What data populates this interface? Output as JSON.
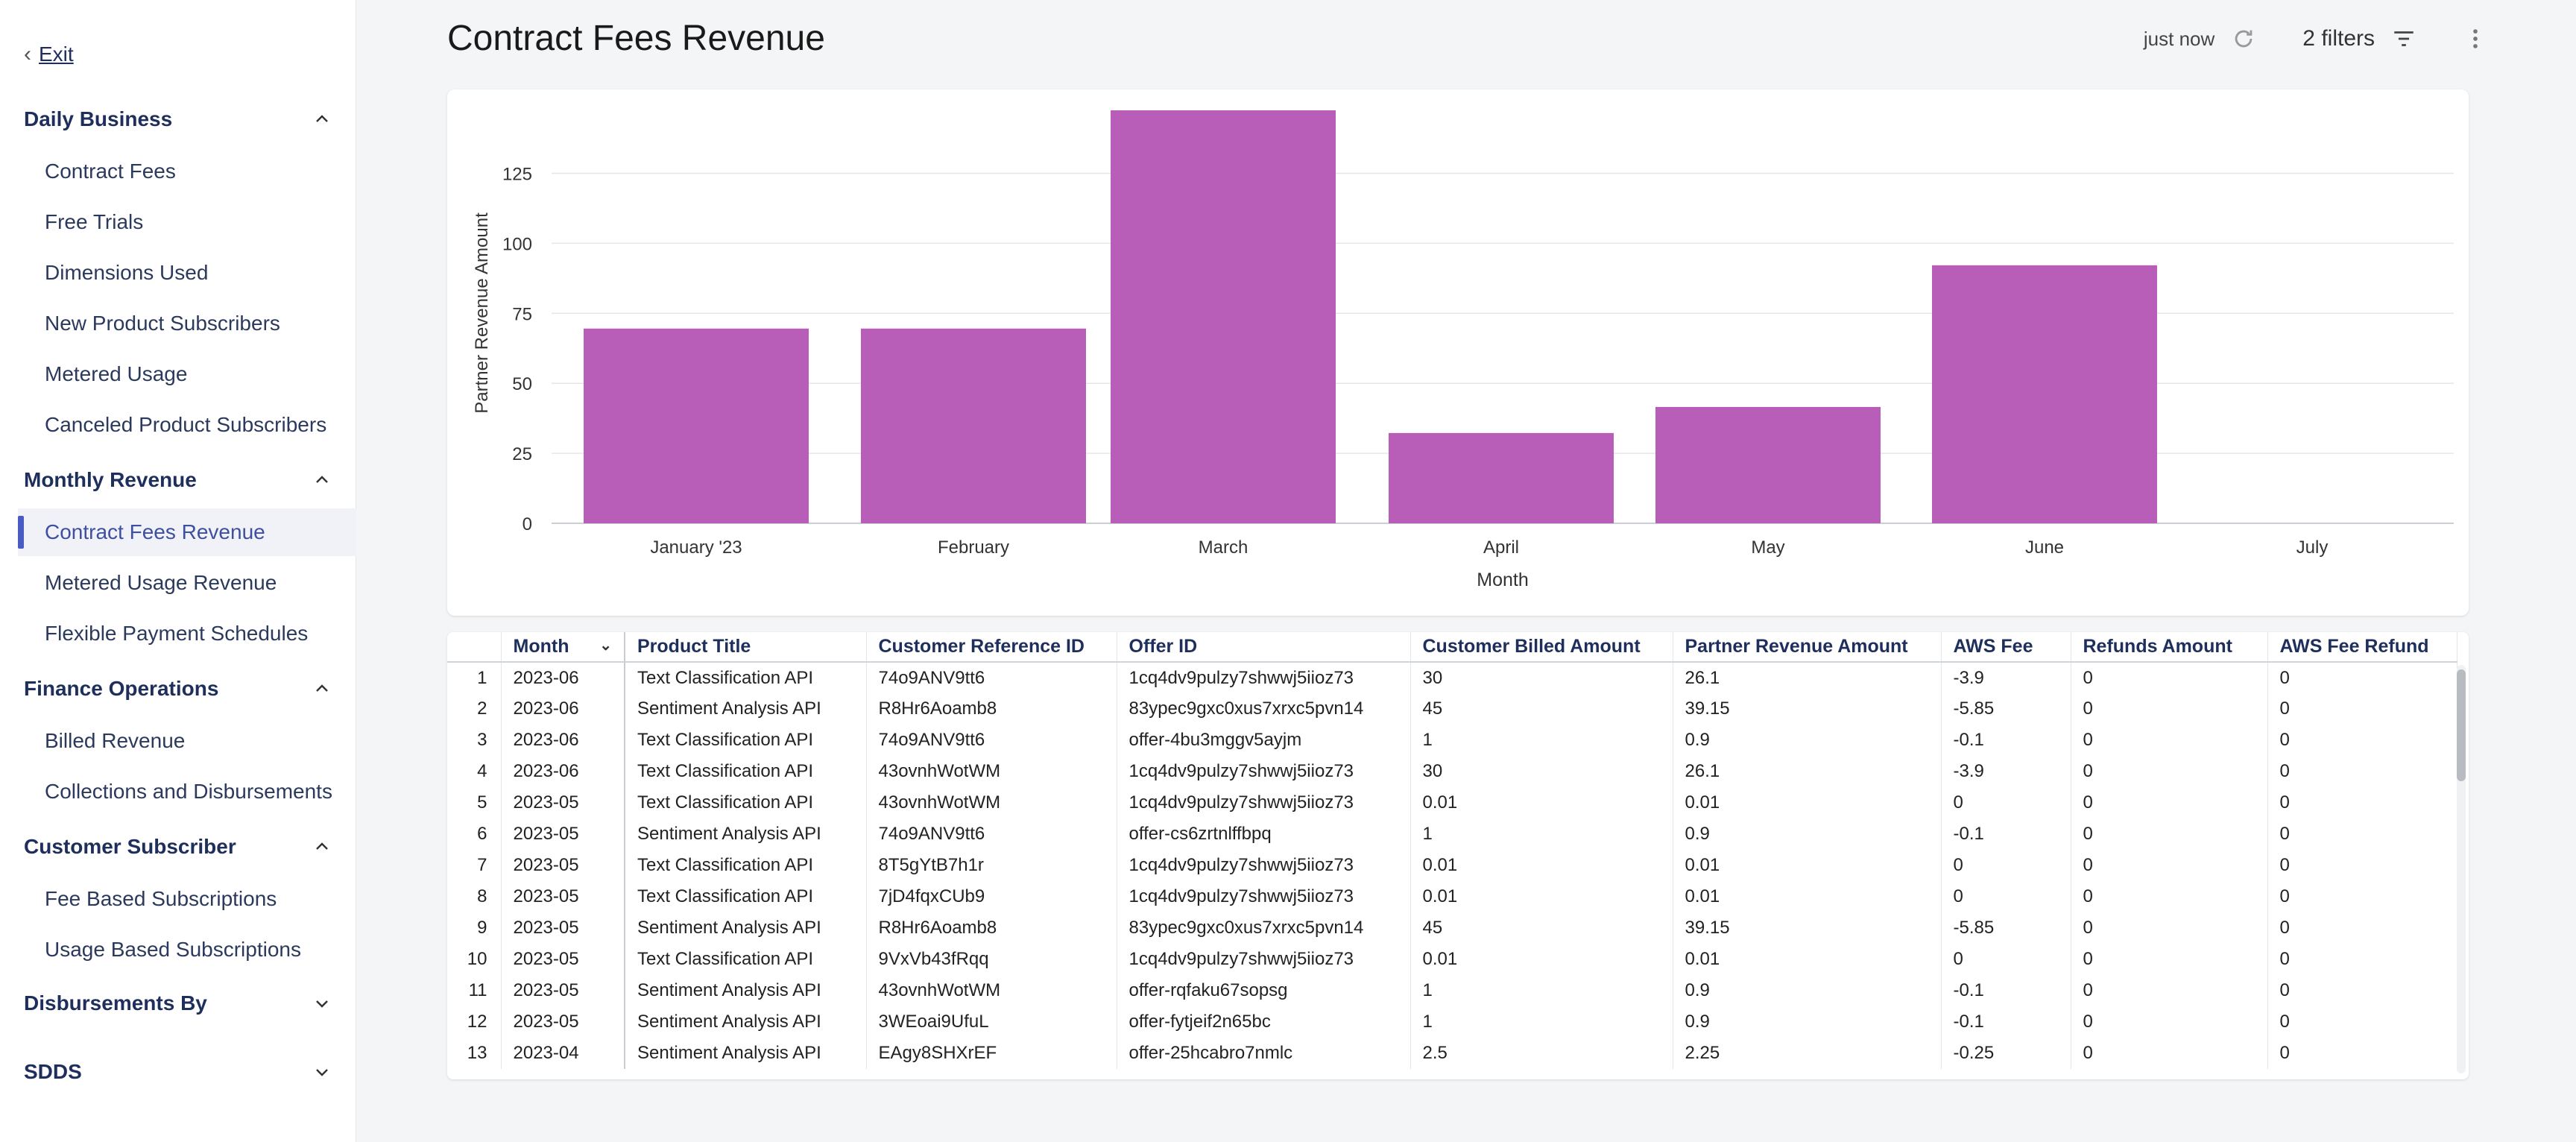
{
  "sidebar": {
    "exit_label": "Exit",
    "sections": [
      {
        "title": "Daily Business",
        "expanded": true,
        "items": [
          "Contract Fees",
          "Free Trials",
          "Dimensions Used",
          "New Product Subscribers",
          "Metered Usage",
          "Canceled Product Subscribers"
        ]
      },
      {
        "title": "Monthly Revenue",
        "expanded": true,
        "items": [
          "Contract Fees Revenue",
          "Metered Usage Revenue",
          "Flexible Payment Schedules"
        ]
      },
      {
        "title": "Finance Operations",
        "expanded": true,
        "items": [
          "Billed Revenue",
          "Collections and Disbursements"
        ]
      },
      {
        "title": "Customer Subscriber",
        "expanded": true,
        "items": [
          "Fee Based Subscriptions",
          "Usage Based Subscriptions"
        ]
      },
      {
        "title": "Disbursements By",
        "expanded": false,
        "items": []
      },
      {
        "title": "SDDS",
        "expanded": false,
        "items": []
      }
    ],
    "active_item": "Contract Fees Revenue"
  },
  "header": {
    "title": "Contract Fees Revenue",
    "updated": "just now",
    "filters_label": "2 filters"
  },
  "colors": {
    "bar": "#b85eb8",
    "accent": "#4a5bc4"
  },
  "chart_data": {
    "type": "bar",
    "categories": [
      "January '23",
      "February",
      "March",
      "April",
      "May",
      "June",
      "July"
    ],
    "values": [
      69.55,
      69.55,
      147.5,
      32.25,
      41.55,
      92.15,
      0
    ],
    "xlabel": "Month",
    "ylabel": "Partner Revenue Amount",
    "yticks": [
      0,
      25,
      50,
      75,
      100,
      125
    ],
    "ylim": [
      0,
      147.5
    ],
    "grid": true
  },
  "table": {
    "columns": [
      "",
      "Month",
      "Product Title",
      "Customer Reference ID",
      "Offer ID",
      "Customer Billed Amount",
      "Partner Revenue Amount",
      "AWS Fee",
      "Refunds Amount",
      "AWS Fee Refund"
    ],
    "rows": [
      [
        "1",
        "2023-06",
        "Text Classification API",
        "74o9ANV9tt6",
        "1cq4dv9pulzy7shwwj5iioz73",
        "30",
        "26.1",
        "-3.9",
        "0",
        "0"
      ],
      [
        "2",
        "2023-06",
        "Sentiment Analysis API",
        "R8Hr6Aoamb8",
        "83ypec9gxc0xus7xrxc5pvn14",
        "45",
        "39.15",
        "-5.85",
        "0",
        "0"
      ],
      [
        "3",
        "2023-06",
        "Text Classification API",
        "74o9ANV9tt6",
        "offer-4bu3mggv5ayjm",
        "1",
        "0.9",
        "-0.1",
        "0",
        "0"
      ],
      [
        "4",
        "2023-06",
        "Text Classification API",
        "43ovnhWotWM",
        "1cq4dv9pulzy7shwwj5iioz73",
        "30",
        "26.1",
        "-3.9",
        "0",
        "0"
      ],
      [
        "5",
        "2023-05",
        "Text Classification API",
        "43ovnhWotWM",
        "1cq4dv9pulzy7shwwj5iioz73",
        "0.01",
        "0.01",
        "0",
        "0",
        "0"
      ],
      [
        "6",
        "2023-05",
        "Sentiment Analysis API",
        "74o9ANV9tt6",
        "offer-cs6zrtnlffbpq",
        "1",
        "0.9",
        "-0.1",
        "0",
        "0"
      ],
      [
        "7",
        "2023-05",
        "Text Classification API",
        "8T5gYtB7h1r",
        "1cq4dv9pulzy7shwwj5iioz73",
        "0.01",
        "0.01",
        "0",
        "0",
        "0"
      ],
      [
        "8",
        "2023-05",
        "Text Classification API",
        "7jD4fqxCUb9",
        "1cq4dv9pulzy7shwwj5iioz73",
        "0.01",
        "0.01",
        "0",
        "0",
        "0"
      ],
      [
        "9",
        "2023-05",
        "Sentiment Analysis API",
        "R8Hr6Aoamb8",
        "83ypec9gxc0xus7xrxc5pvn14",
        "45",
        "39.15",
        "-5.85",
        "0",
        "0"
      ],
      [
        "10",
        "2023-05",
        "Text Classification API",
        "9VxVb43fRqq",
        "1cq4dv9pulzy7shwwj5iioz73",
        "0.01",
        "0.01",
        "0",
        "0",
        "0"
      ],
      [
        "11",
        "2023-05",
        "Sentiment Analysis API",
        "43ovnhWotWM",
        "offer-rqfaku67sopsg",
        "1",
        "0.9",
        "-0.1",
        "0",
        "0"
      ],
      [
        "12",
        "2023-05",
        "Sentiment Analysis API",
        "3WEoai9UfuL",
        "offer-fytjeif2n65bc",
        "1",
        "0.9",
        "-0.1",
        "0",
        "0"
      ],
      [
        "13",
        "2023-04",
        "Sentiment Analysis API",
        "EAgy8SHXrEF",
        "offer-25hcabro7nmlc",
        "2.5",
        "2.25",
        "-0.25",
        "0",
        "0"
      ]
    ]
  }
}
